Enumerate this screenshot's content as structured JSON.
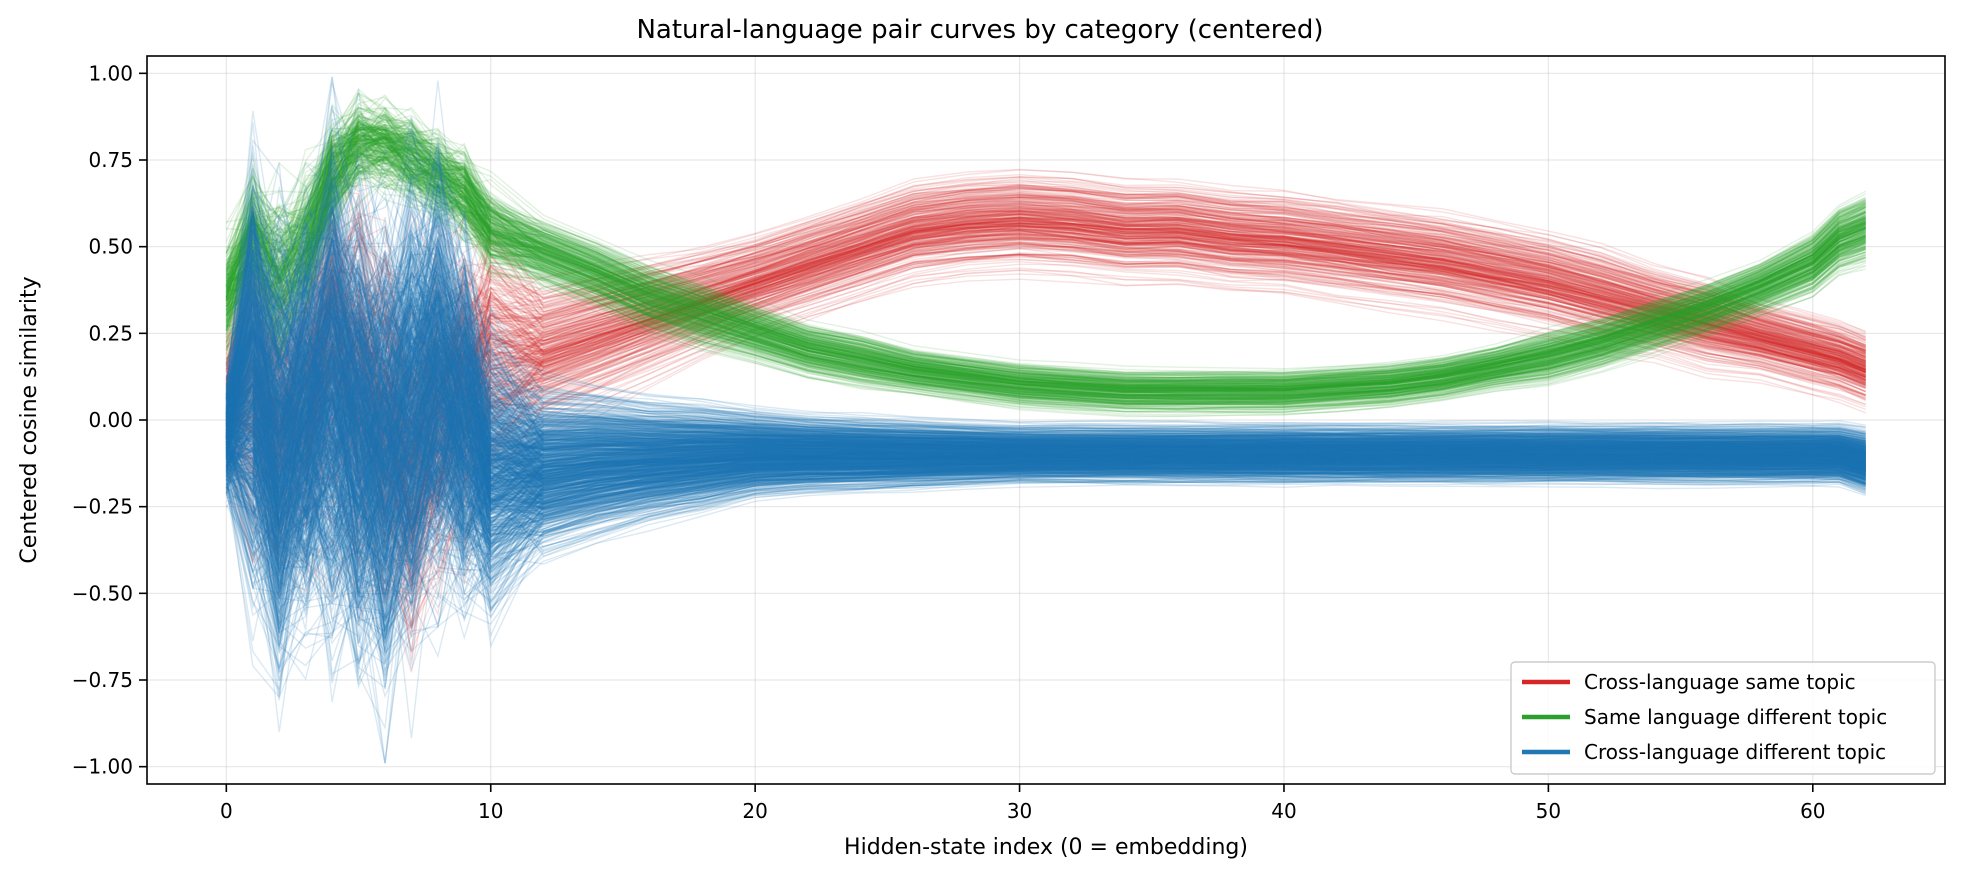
{
  "chart_data": {
    "type": "line",
    "title": "Natural-language pair curves by category (centered)",
    "xlabel": "Hidden-state index (0 = embedding)",
    "ylabel": "Centered cosine similarity",
    "xlim": [
      -3,
      65
    ],
    "ylim": [
      -1.05,
      1.05
    ],
    "xticks": [
      0,
      10,
      20,
      30,
      40,
      50,
      60
    ],
    "xtick_labels": [
      "0",
      "10",
      "20",
      "30",
      "40",
      "50",
      "60"
    ],
    "yticks": [
      1.0,
      0.75,
      0.5,
      0.25,
      0.0,
      -0.25,
      -0.5,
      -0.75,
      -1.0
    ],
    "ytick_labels": [
      "1.00",
      "0.75",
      "0.50",
      "0.25",
      "0.00",
      "−0.25",
      "−0.50",
      "−0.75",
      "−1.00"
    ],
    "grid": true,
    "legend_position": "bottom-right",
    "x": [
      0,
      1,
      2,
      3,
      4,
      5,
      6,
      7,
      8,
      9,
      10,
      12,
      14,
      16,
      18,
      20,
      22,
      24,
      26,
      28,
      30,
      32,
      34,
      36,
      38,
      40,
      42,
      44,
      46,
      48,
      50,
      52,
      54,
      56,
      58,
      60,
      61,
      62
    ],
    "series": [
      {
        "name": "Cross-language same topic",
        "color": "#d62728",
        "curves_estimated": 300,
        "mean": [
          0.05,
          0.1,
          0.0,
          0.05,
          0.2,
          0.1,
          0.0,
          -0.1,
          0.0,
          0.1,
          0.2,
          0.2,
          0.25,
          0.3,
          0.35,
          0.4,
          0.45,
          0.5,
          0.55,
          0.57,
          0.58,
          0.57,
          0.55,
          0.55,
          0.53,
          0.52,
          0.5,
          0.48,
          0.46,
          0.43,
          0.4,
          0.36,
          0.32,
          0.28,
          0.24,
          0.2,
          0.18,
          0.15
        ],
        "spread": [
          0.2,
          0.5,
          0.5,
          0.5,
          0.6,
          0.6,
          0.6,
          0.6,
          0.55,
          0.5,
          0.4,
          0.3,
          0.28,
          0.25,
          0.22,
          0.2,
          0.2,
          0.2,
          0.2,
          0.2,
          0.2,
          0.2,
          0.2,
          0.2,
          0.2,
          0.2,
          0.2,
          0.2,
          0.2,
          0.2,
          0.2,
          0.2,
          0.18,
          0.18,
          0.15,
          0.15,
          0.15,
          0.15
        ]
      },
      {
        "name": "Same language different topic",
        "color": "#2ca02c",
        "curves_estimated": 300,
        "mean": [
          0.35,
          0.5,
          0.4,
          0.5,
          0.7,
          0.8,
          0.8,
          0.75,
          0.7,
          0.65,
          0.55,
          0.48,
          0.42,
          0.35,
          0.3,
          0.25,
          0.2,
          0.17,
          0.14,
          0.12,
          0.1,
          0.09,
          0.08,
          0.08,
          0.08,
          0.08,
          0.09,
          0.1,
          0.12,
          0.15,
          0.18,
          0.22,
          0.27,
          0.32,
          0.38,
          0.45,
          0.52,
          0.55
        ],
        "spread": [
          0.2,
          0.3,
          0.3,
          0.25,
          0.2,
          0.15,
          0.15,
          0.15,
          0.15,
          0.15,
          0.15,
          0.15,
          0.15,
          0.15,
          0.15,
          0.13,
          0.12,
          0.12,
          0.1,
          0.1,
          0.1,
          0.1,
          0.1,
          0.1,
          0.1,
          0.1,
          0.1,
          0.1,
          0.1,
          0.1,
          0.12,
          0.12,
          0.12,
          0.12,
          0.12,
          0.14,
          0.15,
          0.16
        ]
      },
      {
        "name": "Cross-language different topic",
        "color": "#1f77b4",
        "curves_estimated": 900,
        "mean": [
          -0.05,
          0.1,
          -0.1,
          0.0,
          0.1,
          0.0,
          -0.1,
          0.0,
          0.1,
          0.0,
          -0.15,
          -0.15,
          -0.13,
          -0.12,
          -0.11,
          -0.1,
          -0.1,
          -0.1,
          -0.1,
          -0.1,
          -0.1,
          -0.1,
          -0.1,
          -0.1,
          -0.1,
          -0.1,
          -0.1,
          -0.1,
          -0.1,
          -0.1,
          -0.1,
          -0.1,
          -0.1,
          -0.1,
          -0.1,
          -0.1,
          -0.1,
          -0.12
        ],
        "spread": [
          0.2,
          0.7,
          0.75,
          0.7,
          0.8,
          0.8,
          0.8,
          0.8,
          0.7,
          0.6,
          0.45,
          0.35,
          0.3,
          0.25,
          0.22,
          0.18,
          0.16,
          0.15,
          0.14,
          0.13,
          0.12,
          0.12,
          0.12,
          0.12,
          0.12,
          0.12,
          0.12,
          0.12,
          0.12,
          0.12,
          0.12,
          0.12,
          0.12,
          0.12,
          0.12,
          0.12,
          0.12,
          0.13
        ]
      }
    ]
  }
}
